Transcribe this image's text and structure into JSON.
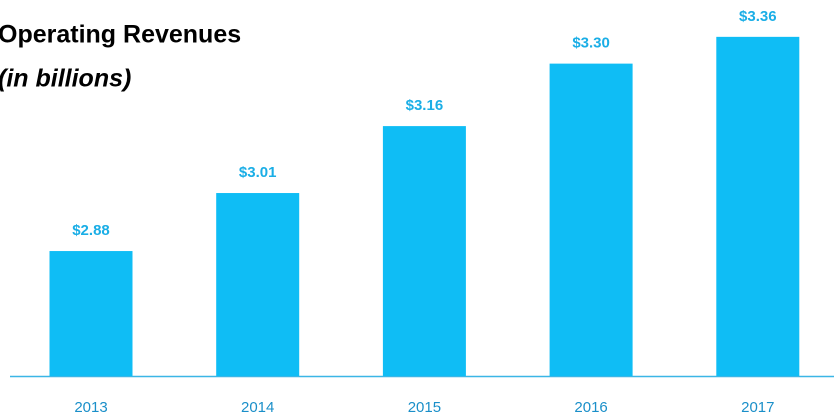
{
  "chart_data": {
    "type": "bar",
    "title": "Operating Revenues",
    "subtitle": "(in billions)",
    "categories": [
      "2013",
      "2014",
      "2015",
      "2016",
      "2017"
    ],
    "values": [
      2.88,
      3.01,
      3.16,
      3.3,
      3.36
    ],
    "value_labels": [
      "$2.88",
      "$3.01",
      "$3.16",
      "$3.30",
      "$3.36"
    ],
    "color": "#0fbdf5",
    "label_color": "#1aaee6",
    "ylim": [
      2.6,
      3.4
    ]
  }
}
